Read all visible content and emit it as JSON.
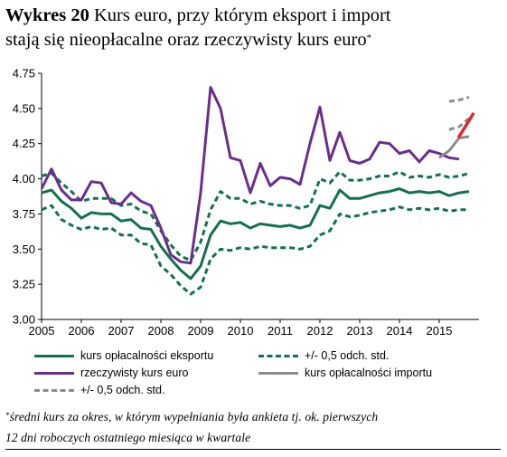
{
  "title": {
    "prefix": "Wykres 20",
    "text_line1": "Kurs euro, przy którym eksport i import",
    "text_line2": "stają się nieopłacalne oraz rzeczywisty kurs euro",
    "marker": "*"
  },
  "footnote": {
    "marker": "*",
    "text_line1": "średni kurs za okres, w którym wypełniania była ankieta tj. ok. pierwszych",
    "text_line2": "12 dni roboczych ostatniego miesiąca w kwartale"
  },
  "colors": {
    "export": "#15704f",
    "actual": "#6a2e8c",
    "import": "#8c8c8c",
    "highlight": "#e0262e",
    "axis": "#000000"
  },
  "chart_data": {
    "type": "line",
    "ylim": [
      3.0,
      4.75
    ],
    "yticks": [
      "3.00",
      "3.25",
      "3.50",
      "3.75",
      "4.00",
      "4.25",
      "4.50",
      "4.75"
    ],
    "xticks": [
      "2005",
      "2006",
      "2007",
      "2008",
      "2009",
      "2010",
      "2011",
      "2012",
      "2013",
      "2014",
      "2015"
    ],
    "grid": false,
    "legend_position": "bottom",
    "series": [
      {
        "name": "kurs opłacalności eksportu",
        "key": "export",
        "style": "solid",
        "x": [
          2005.0,
          2005.25,
          2005.5,
          2005.75,
          2006.0,
          2006.25,
          2006.5,
          2006.75,
          2007.0,
          2007.25,
          2007.5,
          2007.75,
          2008.0,
          2008.25,
          2008.5,
          2008.75,
          2009.0,
          2009.25,
          2009.5,
          2009.75,
          2010.0,
          2010.25,
          2010.5,
          2010.75,
          2011.0,
          2011.25,
          2011.5,
          2011.75,
          2012.0,
          2012.25,
          2012.5,
          2012.75,
          2013.0,
          2013.25,
          2013.5,
          2013.75,
          2014.0,
          2014.25,
          2014.5,
          2014.75,
          2015.0,
          2015.25,
          2015.5,
          2015.75
        ],
        "values": [
          3.9,
          3.92,
          3.84,
          3.79,
          3.72,
          3.76,
          3.75,
          3.75,
          3.7,
          3.71,
          3.65,
          3.64,
          3.52,
          3.43,
          3.35,
          3.29,
          3.38,
          3.6,
          3.7,
          3.68,
          3.69,
          3.65,
          3.68,
          3.67,
          3.66,
          3.67,
          3.65,
          3.67,
          3.81,
          3.79,
          3.92,
          3.86,
          3.86,
          3.88,
          3.9,
          3.91,
          3.93,
          3.9,
          3.91,
          3.9,
          3.91,
          3.88,
          3.9,
          3.91
        ]
      },
      {
        "name": "+/- 0,5 odch. std.",
        "key": "export_upper",
        "style": "dashed",
        "x": [
          2005.0,
          2005.25,
          2005.5,
          2005.75,
          2006.0,
          2006.25,
          2006.5,
          2006.75,
          2007.0,
          2007.25,
          2007.5,
          2007.75,
          2008.0,
          2008.25,
          2008.5,
          2008.75,
          2009.0,
          2009.25,
          2009.5,
          2009.75,
          2010.0,
          2010.25,
          2010.5,
          2010.75,
          2011.0,
          2011.25,
          2011.5,
          2011.75,
          2012.0,
          2012.25,
          2012.5,
          2012.75,
          2013.0,
          2013.25,
          2013.5,
          2013.75,
          2014.0,
          2014.25,
          2014.5,
          2014.75,
          2015.0,
          2015.25,
          2015.5,
          2015.75
        ],
        "values": [
          4.02,
          4.04,
          3.97,
          3.91,
          3.84,
          3.86,
          3.86,
          3.86,
          3.81,
          3.82,
          3.77,
          3.75,
          3.63,
          3.53,
          3.45,
          3.42,
          3.55,
          3.78,
          3.91,
          3.86,
          3.86,
          3.82,
          3.84,
          3.82,
          3.81,
          3.81,
          3.79,
          3.81,
          4.0,
          3.97,
          4.05,
          3.99,
          3.99,
          4.0,
          4.02,
          4.02,
          4.05,
          4.01,
          4.02,
          4.01,
          4.03,
          4.01,
          4.02,
          4.04
        ]
      },
      {
        "name": "",
        "key": "export_lower",
        "style": "dashed",
        "x": [
          2005.0,
          2005.25,
          2005.5,
          2005.75,
          2006.0,
          2006.25,
          2006.5,
          2006.75,
          2007.0,
          2007.25,
          2007.5,
          2007.75,
          2008.0,
          2008.25,
          2008.5,
          2008.75,
          2009.0,
          2009.25,
          2009.5,
          2009.75,
          2010.0,
          2010.25,
          2010.5,
          2010.75,
          2011.0,
          2011.25,
          2011.5,
          2011.75,
          2012.0,
          2012.25,
          2012.5,
          2012.75,
          2013.0,
          2013.25,
          2013.5,
          2013.75,
          2014.0,
          2014.25,
          2014.5,
          2014.75,
          2015.0,
          2015.25,
          2015.5,
          2015.75
        ],
        "values": [
          3.78,
          3.81,
          3.71,
          3.67,
          3.64,
          3.66,
          3.64,
          3.65,
          3.6,
          3.6,
          3.54,
          3.53,
          3.38,
          3.32,
          3.24,
          3.18,
          3.23,
          3.43,
          3.5,
          3.49,
          3.51,
          3.5,
          3.52,
          3.51,
          3.51,
          3.51,
          3.5,
          3.52,
          3.6,
          3.63,
          3.75,
          3.73,
          3.74,
          3.76,
          3.77,
          3.78,
          3.8,
          3.78,
          3.79,
          3.78,
          3.79,
          3.77,
          3.78,
          3.78
        ]
      },
      {
        "name": "rzeczywisty kurs euro",
        "key": "actual",
        "style": "solid",
        "x": [
          2005.0,
          2005.25,
          2005.5,
          2005.75,
          2006.0,
          2006.25,
          2006.5,
          2006.75,
          2007.0,
          2007.25,
          2007.5,
          2007.75,
          2008.0,
          2008.25,
          2008.5,
          2008.75,
          2009.0,
          2009.25,
          2009.5,
          2009.75,
          2010.0,
          2010.25,
          2010.5,
          2010.75,
          2011.0,
          2011.25,
          2011.5,
          2011.75,
          2012.0,
          2012.25,
          2012.5,
          2012.75,
          2013.0,
          2013.25,
          2013.5,
          2013.75,
          2014.0,
          2014.25,
          2014.5,
          2014.75,
          2015.0,
          2015.25,
          2015.5
        ],
        "values": [
          3.93,
          4.07,
          3.92,
          3.85,
          3.85,
          3.98,
          3.97,
          3.83,
          3.82,
          3.9,
          3.84,
          3.81,
          3.65,
          3.46,
          3.41,
          3.4,
          3.9,
          4.65,
          4.5,
          4.15,
          4.13,
          3.9,
          4.11,
          3.95,
          4.01,
          4.0,
          3.96,
          4.25,
          4.51,
          4.13,
          4.33,
          4.13,
          4.11,
          4.14,
          4.26,
          4.25,
          4.18,
          4.2,
          4.12,
          4.2,
          4.18,
          4.15,
          4.14
        ]
      },
      {
        "name": "kurs opłacalności importu",
        "key": "import",
        "style": "solid",
        "x": [
          2015.0,
          2015.25,
          2015.5,
          2015.75
        ],
        "values": [
          4.15,
          4.2,
          4.29,
          4.3
        ]
      },
      {
        "name": "+/- 0,5 odch. std.",
        "key": "import_upper",
        "style": "dashed",
        "x": [
          2015.25,
          2015.5,
          2015.75
        ],
        "values": [
          4.55,
          4.56,
          4.58
        ]
      },
      {
        "name": "",
        "key": "import_mid",
        "style": "dashed",
        "x": [
          2015.25,
          2015.5,
          2015.75
        ],
        "values": [
          4.35,
          4.37,
          4.43
        ]
      }
    ],
    "highlight_segment": {
      "x": [
        2015.5,
        2015.85
      ],
      "values": [
        4.3,
        4.46
      ]
    }
  }
}
